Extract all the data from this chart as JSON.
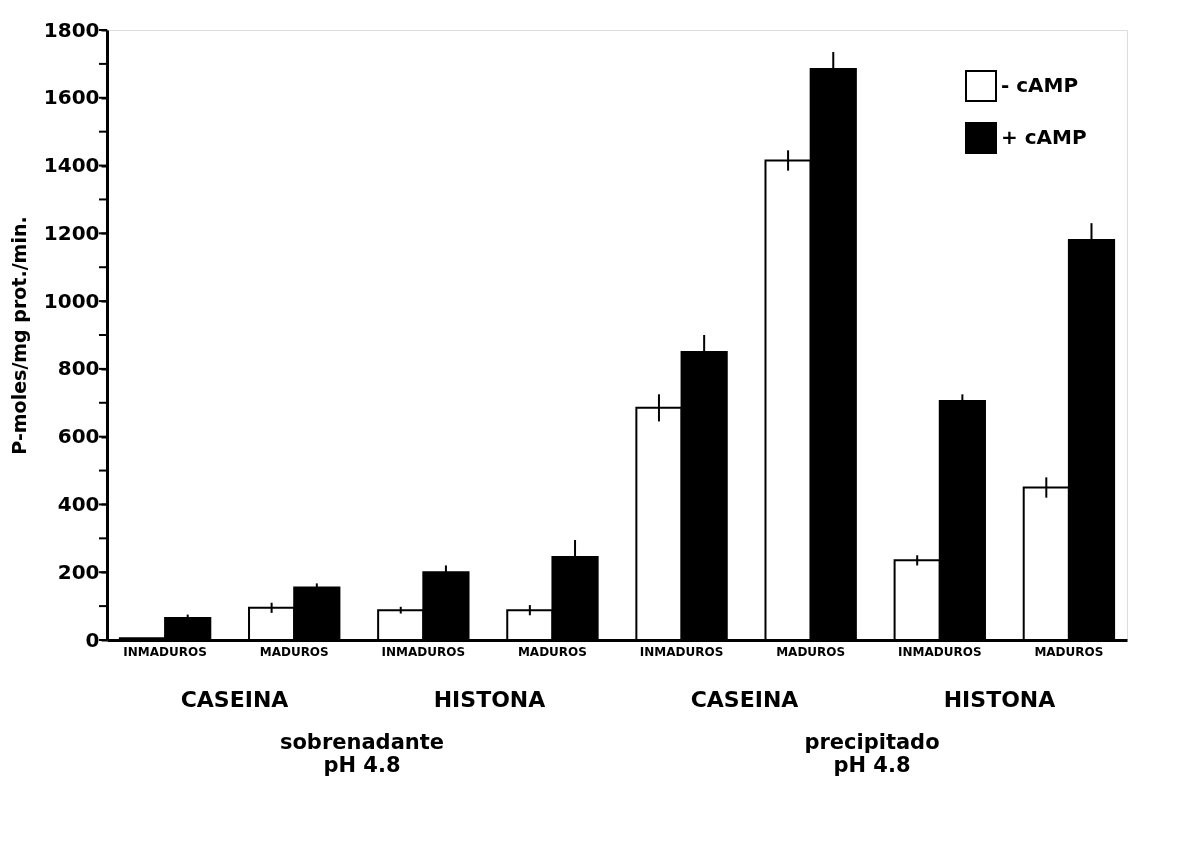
{
  "chart_data": {
    "type": "bar",
    "ylabel": "P-moles/mg prot./min.",
    "categories": [
      "INMADUROS",
      "MADUROS",
      "INMADUROS",
      "MADUROS",
      "INMADUROS",
      "MADUROS",
      "INMADUROS",
      "MADUROS"
    ],
    "series": [
      {
        "name": "- cAMP",
        "color": "#ffffff",
        "values": [
          5,
          95,
          88,
          88,
          685,
          1415,
          235,
          450
        ],
        "errors": [
          null,
          15,
          10,
          15,
          40,
          30,
          15,
          30
        ]
      },
      {
        "name": "+ cAMP",
        "color": "#000000",
        "values": [
          65,
          155,
          200,
          245,
          850,
          1685,
          705,
          1180
        ],
        "errors": [
          10,
          12,
          20,
          50,
          50,
          50,
          20,
          50
        ]
      }
    ],
    "ylim": [
      0,
      1800
    ],
    "yticks": [
      0,
      {
        "value": 100,
        "label": null
      },
      200,
      {
        "value": 300,
        "label": null
      },
      400,
      {
        "value": 500,
        "label": null
      },
      600,
      {
        "value": 700,
        "label": null
      },
      800,
      {
        "value": 900,
        "label": null
      },
      1000,
      {
        "value": 1100,
        "label": null
      },
      1200,
      {
        "value": 1300,
        "label": null
      },
      1400,
      {
        "value": 1500,
        "label": null
      },
      1600,
      {
        "value": 1700,
        "label": null
      },
      1800
    ],
    "grid": false,
    "legend": "top right",
    "annotations": [
      "CASEINA",
      "HISTONA",
      "CASEINA",
      "HISTONA",
      "sobrenadante\npH 4.8",
      "precipitado\npH 4.8"
    ]
  }
}
